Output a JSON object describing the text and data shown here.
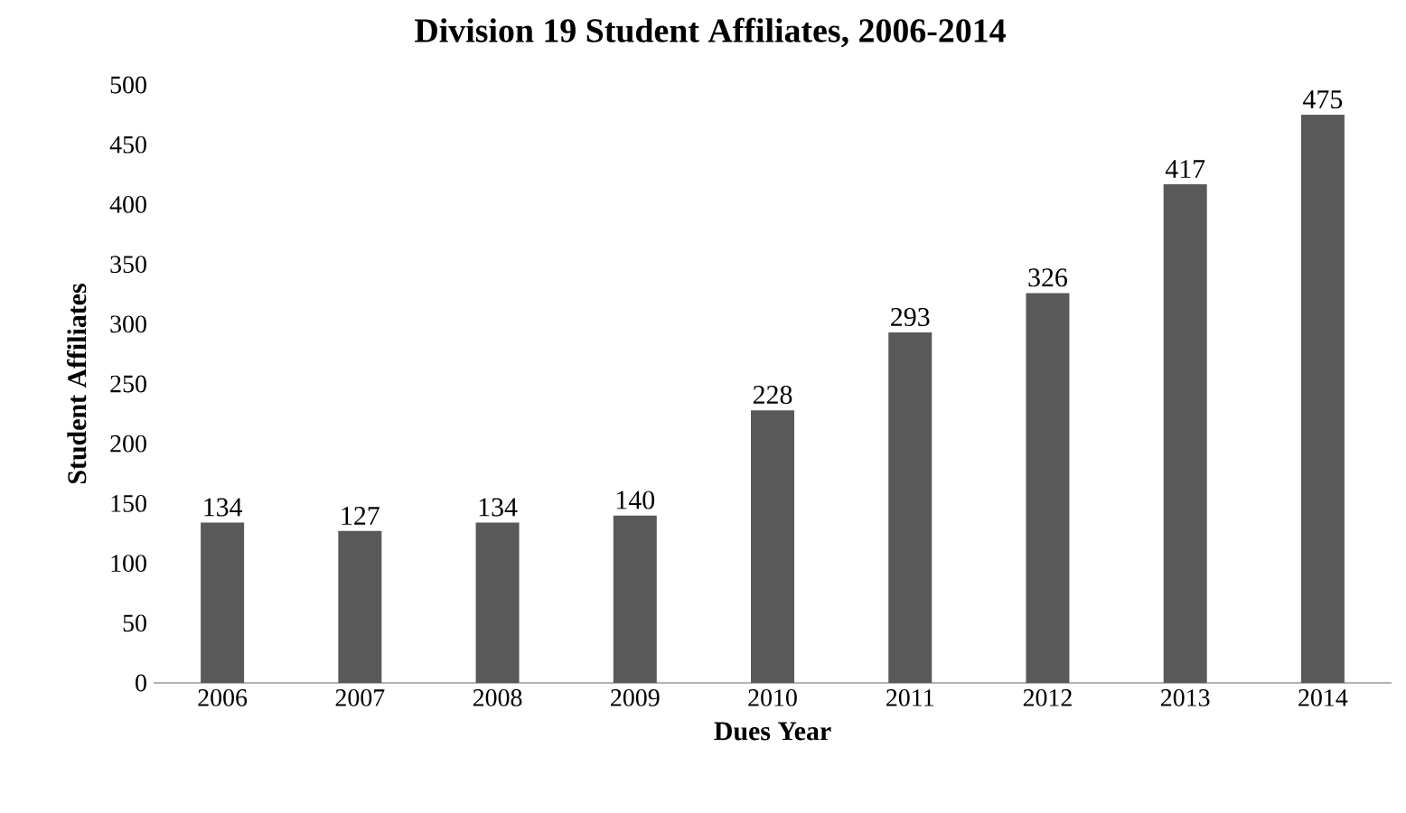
{
  "chart_data": {
    "type": "bar",
    "title": "Division 19 Student Affiliates, 2006-2014",
    "xlabel": "Dues Year",
    "ylabel": "Student Affiliates",
    "categories": [
      "2006",
      "2007",
      "2008",
      "2009",
      "2010",
      "2011",
      "2012",
      "2013",
      "2014"
    ],
    "values": [
      134,
      127,
      134,
      140,
      228,
      293,
      326,
      417,
      475
    ],
    "color": "#595959",
    "ylim": [
      0,
      500
    ],
    "yticks": [
      0,
      50,
      100,
      150,
      200,
      250,
      300,
      350,
      400,
      450,
      500
    ],
    "grid": false,
    "data_labels": true
  }
}
